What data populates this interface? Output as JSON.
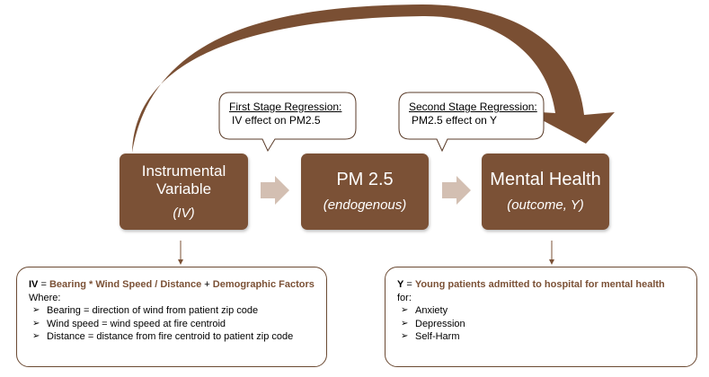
{
  "nodes": {
    "iv": {
      "line1": "Instrumental",
      "line2": "Variable",
      "sub": "(IV)"
    },
    "pm": {
      "title": "PM 2.5",
      "sub": "(endogenous)"
    },
    "mh": {
      "title": "Mental Health",
      "sub": "(outcome, Y)"
    }
  },
  "callouts": {
    "first": {
      "heading": "First Stage Regression:",
      "text": "IV effect on PM2.5"
    },
    "second": {
      "heading": "Second Stage Regression:",
      "text": "PM2.5 effect on Y"
    }
  },
  "iv_box": {
    "label": "IV",
    "eq": " = ",
    "bearing": "Bearing",
    "op1": " * ",
    "wind": "Wind Speed",
    "op2": " / ",
    "distance": "Distance",
    "op3": " + ",
    "demo": "Demographic Factors",
    "where": "Where:",
    "items": [
      "Bearing = direction of wind from patient zip code",
      "Wind speed = wind speed at fire centroid",
      "Distance = distance from fire centroid to patient zip code"
    ]
  },
  "y_box": {
    "label": "Y",
    "eq": " = ",
    "desc": "Young patients admitted to hospital for mental health",
    "for": "for:",
    "items": [
      "Anxiety",
      "Depression",
      "Self-Harm"
    ]
  },
  "bullet_glyph": "➢",
  "colors": {
    "node_fill": "#7b5136",
    "arc_fill": "#7a4f33",
    "chevron_fill": "#d3bfb2",
    "connector": "#7b5136"
  }
}
